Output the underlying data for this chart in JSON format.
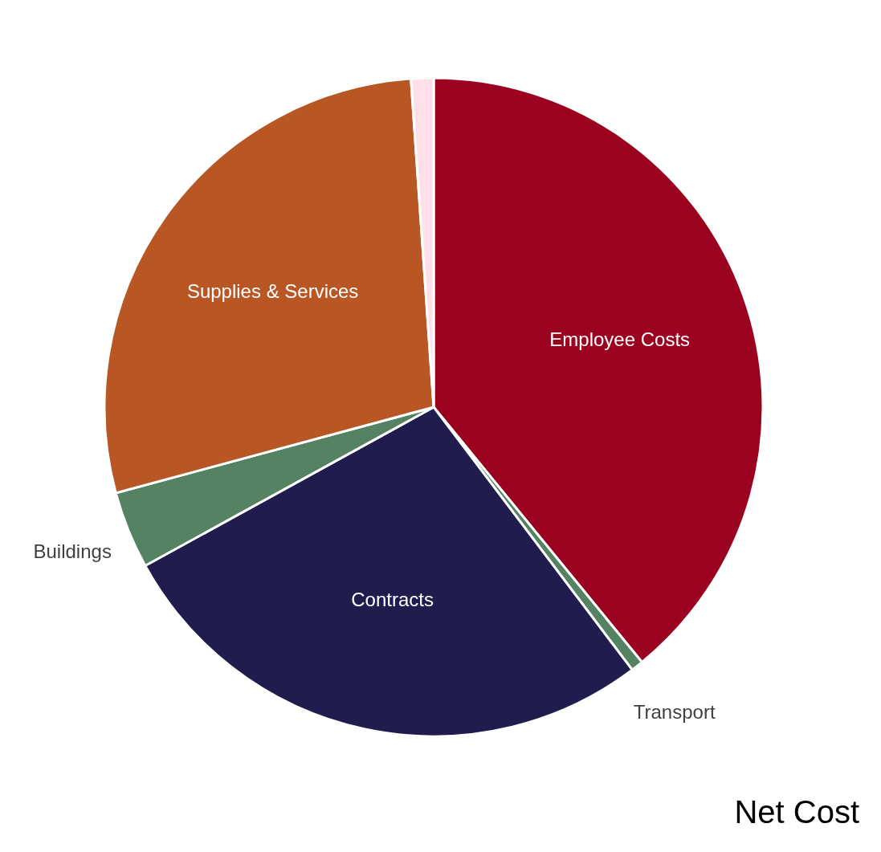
{
  "chart_data": {
    "type": "pie",
    "title": "Net Cost",
    "categories": [
      "Employee Costs",
      "Transport",
      "Contracts",
      "Buildings",
      "Supplies & Services",
      null
    ],
    "values": [
      39.1,
      0.6,
      27.3,
      3.8,
      28.1,
      1.1
    ],
    "colors": [
      "#9a0220",
      "#548262",
      "#201d4e",
      "#548262",
      "#b85624",
      "#ffe0e8"
    ],
    "legend": false
  }
}
